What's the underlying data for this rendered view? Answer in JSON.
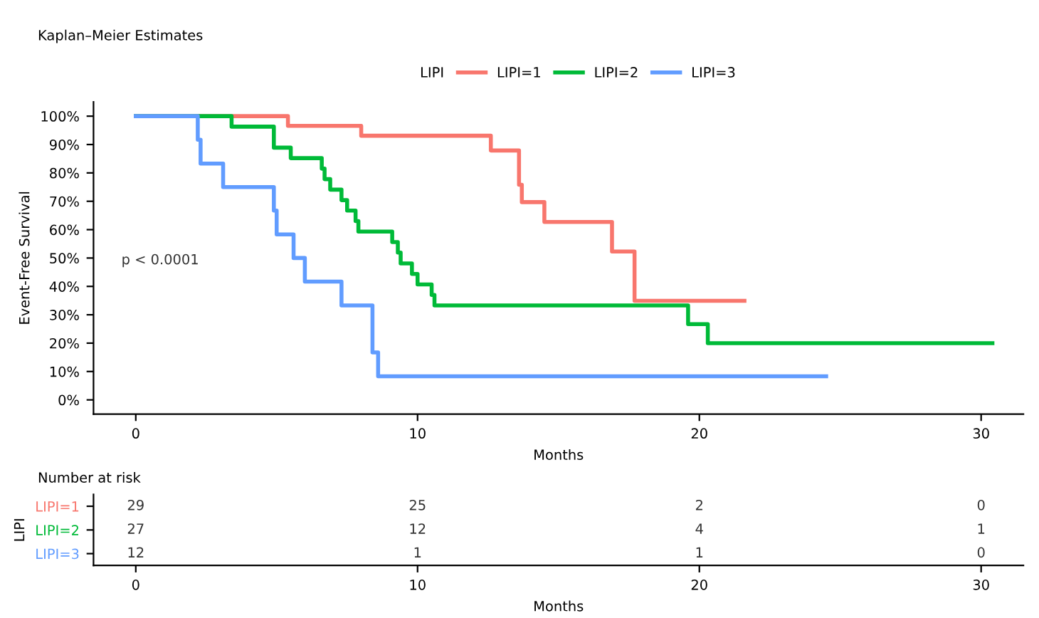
{
  "chart_data": [
    {
      "type": "step",
      "title": "Kaplan–Meier Estimates",
      "xlabel": "Months",
      "ylabel": "Event-Free Survival",
      "legend_title": "LIPI",
      "legend": "top",
      "xlim": [
        -1.5,
        31.5
      ],
      "xticks": [
        0,
        10,
        20,
        30
      ],
      "ylim": [
        -5,
        105
      ],
      "yticks": [
        {
          "value": 0,
          "label": "0%"
        },
        {
          "value": 10,
          "label": "10%"
        },
        {
          "value": 20,
          "label": "20%"
        },
        {
          "value": 30,
          "label": "30%"
        },
        {
          "value": 40,
          "label": "40%"
        },
        {
          "value": 50,
          "label": "50%"
        },
        {
          "value": 60,
          "label": "60%"
        },
        {
          "value": 70,
          "label": "70%"
        },
        {
          "value": 80,
          "label": "80%"
        },
        {
          "value": 90,
          "label": "90%"
        },
        {
          "value": 100,
          "label": "100%"
        }
      ],
      "grid": false,
      "marker": "none",
      "line_style": "solid",
      "annotations": [
        "p < 0.0001"
      ],
      "series": [
        {
          "name": "LIPI=1",
          "color": "#f8766d",
          "x": [
            0,
            5.4,
            8.0,
            12.6,
            13.6,
            13.7,
            14.5,
            16.9,
            17.7,
            21.6
          ],
          "values": [
            100,
            96.6,
            93.1,
            87.9,
            75.8,
            69.7,
            62.7,
            52.3,
            34.9,
            34.9
          ]
        },
        {
          "name": "LIPI=2",
          "color": "#00ba38",
          "x": [
            0,
            3.4,
            4.9,
            5.5,
            6.6,
            6.7,
            6.9,
            7.3,
            7.5,
            7.8,
            7.9,
            9.1,
            9.3,
            9.4,
            9.8,
            10.0,
            10.5,
            10.6,
            19.6,
            20.3,
            30.4
          ],
          "values": [
            100,
            96.3,
            88.9,
            85.2,
            81.5,
            77.8,
            74.1,
            70.4,
            66.7,
            63.0,
            59.3,
            55.6,
            51.9,
            48.1,
            44.4,
            40.7,
            37.0,
            33.3,
            26.7,
            20.0,
            20.0
          ]
        },
        {
          "name": "LIPI=3",
          "color": "#619cff",
          "x": [
            0,
            2.2,
            2.3,
            3.1,
            4.9,
            5.0,
            5.6,
            6.0,
            7.3,
            8.4,
            8.6,
            24.5
          ],
          "values": [
            100,
            91.7,
            83.3,
            75.0,
            66.7,
            58.3,
            50.0,
            41.7,
            33.3,
            16.7,
            8.3,
            8.3
          ]
        }
      ]
    },
    {
      "type": "heatmap",
      "title": "Number at risk",
      "xlabel": "Months",
      "ylabel": "LIPI",
      "categories": [
        "0",
        "10",
        "20",
        "30"
      ],
      "y_categories": [
        "LIPI=1",
        "LIPI=2",
        "LIPI=3"
      ],
      "cells": [
        [
          29,
          25,
          2,
          0
        ],
        [
          27,
          12,
          4,
          1
        ],
        [
          12,
          1,
          1,
          0
        ]
      ],
      "data_labels": true
    }
  ]
}
